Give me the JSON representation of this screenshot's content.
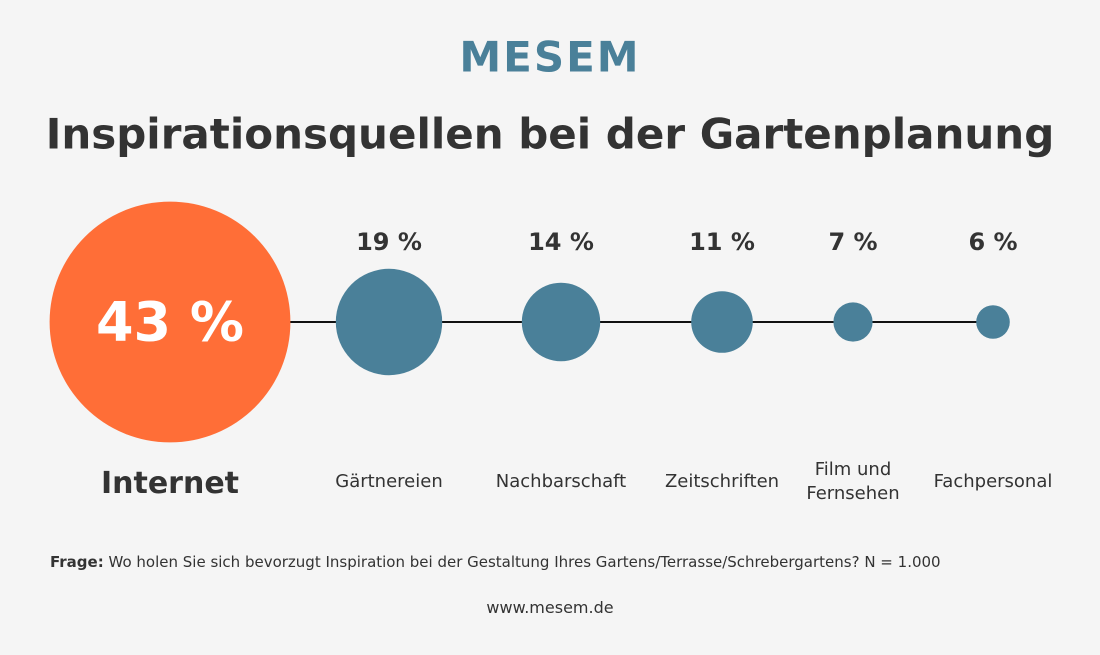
{
  "logo": "MESEM",
  "chart_data": {
    "type": "bubble",
    "title": "Inspirationsquellen bei der Gartenplanung",
    "categories": [
      "Internet",
      "Gärtnereien",
      "Nachbarschaft",
      "Zeitschriften",
      "Film und Fernsehen",
      "Fachpersonal"
    ],
    "values": [
      43,
      19,
      14,
      11,
      7,
      6
    ],
    "value_labels": [
      "43 %",
      "19 %",
      "14 %",
      "11 %",
      "7 %",
      "6 %"
    ],
    "colors": [
      "#ff6e37",
      "#4a8099",
      "#4a8099",
      "#4a8099",
      "#4a8099",
      "#4a8099"
    ]
  },
  "footer": {
    "question_label": "Frage:",
    "question": "Wo holen Sie sich bevorzugt Inspiration bei der Gestaltung Ihres Gartens/Terrasse/Schrebergartens? N = 1.000",
    "source": "www.mesem.de"
  }
}
